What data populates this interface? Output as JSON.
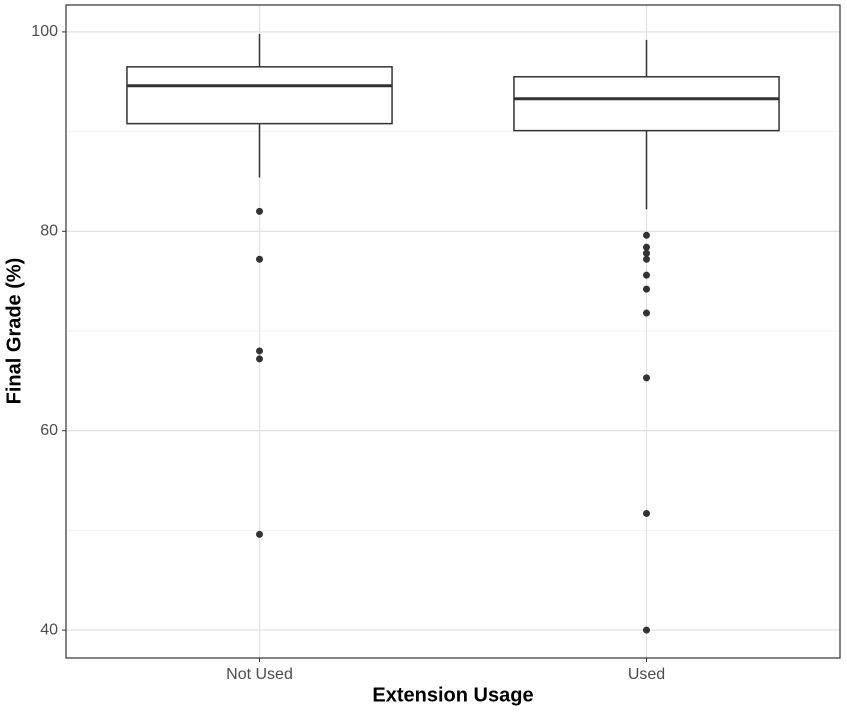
{
  "chart_data": {
    "type": "box",
    "x_label": "Extension Usage",
    "y_label": "Final Grade (%)",
    "categories": [
      "Not Used",
      "Used"
    ],
    "boxes": [
      {
        "whisker_low": 85.4,
        "q1": 90.8,
        "median": 94.6,
        "q3": 96.5,
        "whisker_high": 99.8,
        "outliers": [
          82.0,
          77.2,
          68.0,
          67.2,
          49.6
        ]
      },
      {
        "whisker_low": 82.2,
        "q1": 90.1,
        "median": 93.3,
        "q3": 95.5,
        "whisker_high": 99.2,
        "outliers": [
          79.6,
          78.4,
          77.8,
          77.2,
          75.6,
          74.2,
          71.8,
          65.3,
          51.7,
          40.0
        ]
      }
    ],
    "color": "#333333",
    "ylim": [
      37.2,
      102.7
    ],
    "yticks": [
      40,
      60,
      80,
      100
    ],
    "minor_yticks": [
      50,
      70,
      90
    ],
    "grid": true
  }
}
